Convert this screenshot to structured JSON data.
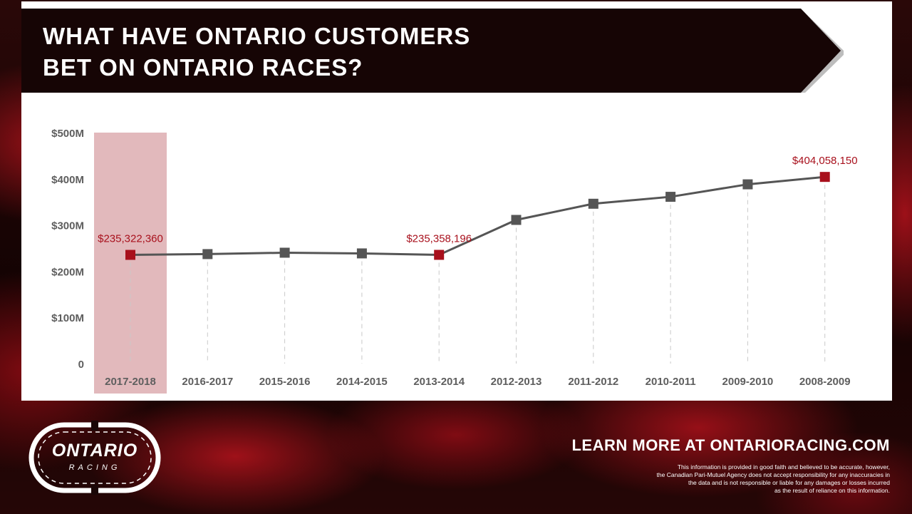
{
  "banner": {
    "title_line1": "WHAT HAVE ONTARIO CUSTOMERS",
    "title_line2": "BET ON ONTARIO RACES?"
  },
  "chart_data": {
    "type": "line",
    "categories": [
      "2017-2018",
      "2016-2017",
      "2015-2016",
      "2014-2015",
      "2013-2014",
      "2012-2013",
      "2011-2012",
      "2010-2011",
      "2009-2010",
      "2008-2009"
    ],
    "values": [
      235322360,
      237000000,
      240000000,
      238500000,
      235358196,
      311000000,
      346000000,
      361000000,
      388000000,
      404058150
    ],
    "ylim": [
      0,
      500000000
    ],
    "yticks": [
      0,
      100000000,
      200000000,
      300000000,
      400000000,
      500000000
    ],
    "ytick_labels": [
      "0",
      "$100M",
      "$200M",
      "$300M",
      "$400M",
      "$500M"
    ],
    "highlighted_category": "2017-2018",
    "highlight_indices": [
      0,
      4,
      9
    ],
    "data_labels": {
      "0": "$235,322,360",
      "4": "$235,358,196",
      "9": "$404,058,150"
    },
    "colors": {
      "line": "#555555",
      "marker": "#555555",
      "accent": "#a8101c",
      "highlight_band": "#e2b9bc",
      "gridline": "#c9c9c9",
      "axis_text": "#5e5e5e"
    },
    "grid": "vertical dashed drop lines"
  },
  "footer": {
    "cta": "LEARN MORE AT ONTARIORACING.COM",
    "disclaimer": [
      "This information is provided in good faith and believed to be accurate, however,",
      "the Canadian Pari-Mutuel Agency does not accept responsibility for any inaccuracies in",
      "the data and is not responsible or liable for any damages or losses incurred",
      "as the result of reliance on this information."
    ]
  },
  "logo": {
    "main": "ONTARIO",
    "sub": "RACING"
  }
}
